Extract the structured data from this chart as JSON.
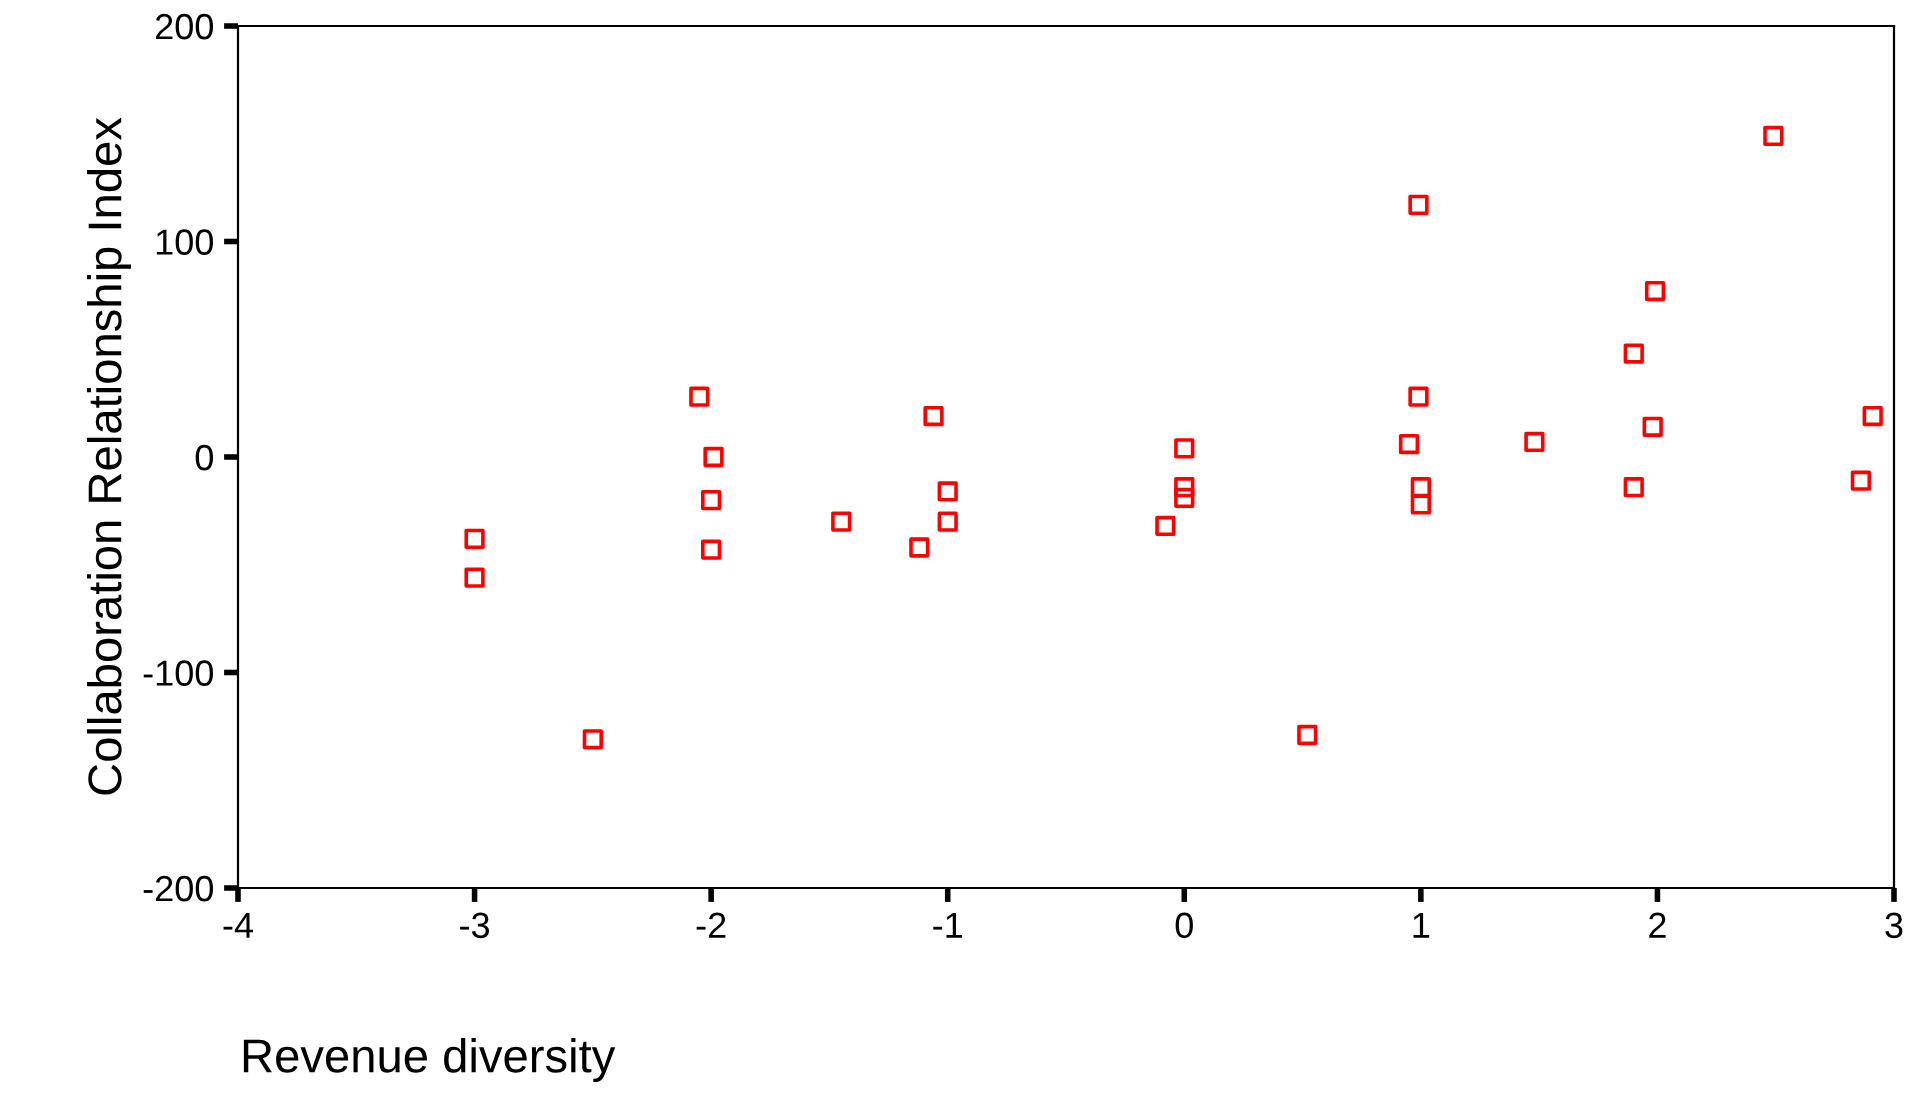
{
  "chart_data": {
    "type": "scatter",
    "xlabel": "Revenue diversity",
    "ylabel": "Collaboration Relationship Index",
    "series": [
      {
        "color": "#ff0000",
        "x": [
          -3.0,
          -3.0,
          -2.5,
          -2.05,
          -1.99,
          -2.0,
          -2.0,
          -1.45,
          -1.06,
          -1.0,
          -1.0,
          -1.12,
          -0.08,
          0.0,
          0.0,
          0.0,
          0.52,
          0.99,
          0.99,
          0.95,
          1.0,
          1.0,
          1.48,
          1.9,
          1.99,
          1.98,
          1.9,
          2.49,
          2.91,
          2.86
        ],
        "values": [
          -38,
          -56,
          -131,
          28,
          0,
          -20,
          -43,
          -30,
          19,
          -16,
          -30,
          -42,
          -32,
          4,
          -14,
          -19,
          -129,
          117,
          28,
          6,
          -14,
          -22,
          7,
          48,
          77,
          14,
          -14,
          149,
          19,
          -11
        ]
      }
    ],
    "xlim": [
      -4,
      3
    ],
    "xticks": [
      -4,
      -3,
      -2,
      -1,
      0,
      1,
      2,
      3
    ],
    "ylim": [
      -200,
      200
    ],
    "yticks": [
      -200,
      -100,
      0,
      100,
      200
    ],
    "marker": "square",
    "grid": false,
    "legend": false
  }
}
